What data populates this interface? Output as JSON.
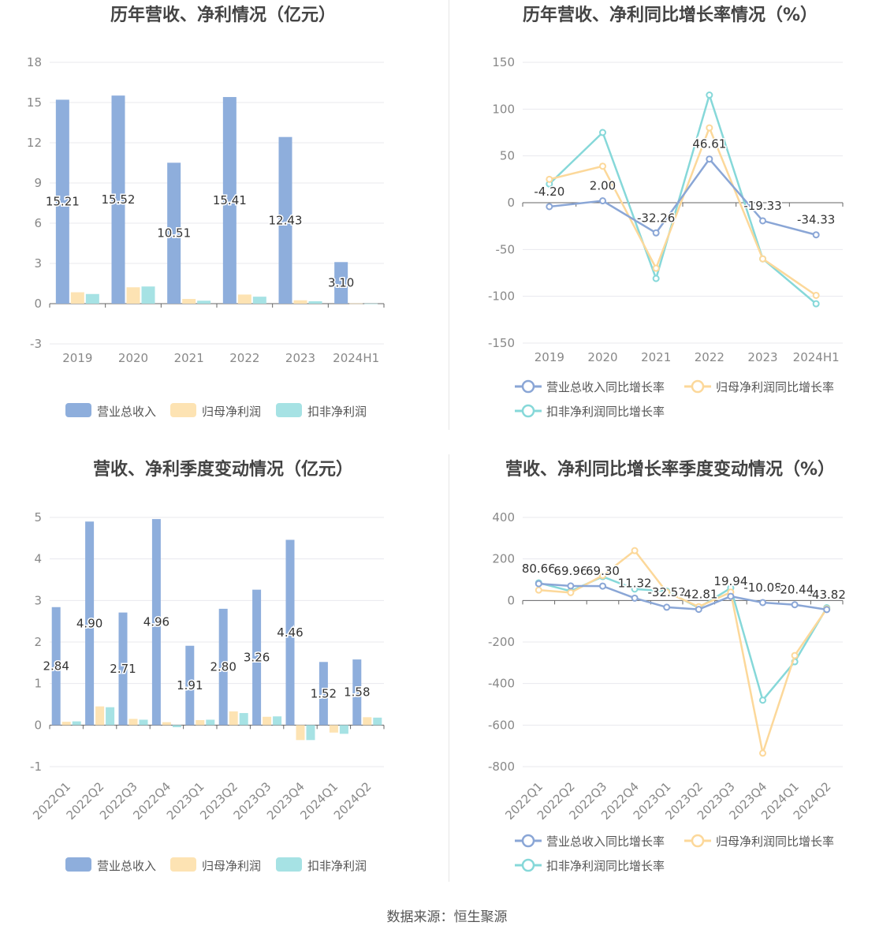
{
  "footer": "数据来源：恒生聚源",
  "colors": {
    "revenue": "#8eaedc",
    "net_profit": "#fde3b3",
    "deducted_profit": "#a6e2e4",
    "revenue_line": "#8aa6d6",
    "net_line": "#fcd89a",
    "deducted_line": "#86d8d9"
  },
  "chart_data": [
    {
      "id": "annual-amount",
      "type": "bar",
      "title": "历年营收、净利情况（亿元）",
      "categories": [
        "2019",
        "2020",
        "2021",
        "2022",
        "2023",
        "2024H1"
      ],
      "ylim": [
        -3,
        18
      ],
      "yticks": [
        -3,
        0,
        3,
        6,
        9,
        12,
        15,
        18
      ],
      "series": [
        {
          "name": "营业总收入",
          "values": [
            15.21,
            15.52,
            10.51,
            15.41,
            12.43,
            3.1
          ],
          "color": "#8eaedc"
        },
        {
          "name": "归母净利润",
          "values": [
            0.85,
            1.22,
            0.35,
            0.68,
            0.25,
            0.02
          ],
          "color": "#fde3b3"
        },
        {
          "name": "扣非净利润",
          "values": [
            0.72,
            1.28,
            0.22,
            0.52,
            0.18,
            0.01
          ],
          "color": "#a6e2e4"
        }
      ],
      "data_labels": [
        "15.21",
        "15.52",
        "10.51",
        "15.41",
        "12.43",
        "3.10"
      ],
      "legend": "bottom",
      "grid": true
    },
    {
      "id": "annual-growth",
      "type": "line",
      "title": "历年营收、净利同比增长率情况（%）",
      "categories": [
        "2019",
        "2020",
        "2021",
        "2022",
        "2023",
        "2024H1"
      ],
      "ylim": [
        -150,
        150
      ],
      "yticks": [
        -150,
        -100,
        -50,
        0,
        50,
        100,
        150
      ],
      "series": [
        {
          "name": "营业总收入同比增长率",
          "values": [
            -4.2,
            2.0,
            -32.26,
            46.61,
            -19.33,
            -34.33
          ],
          "color": "#8aa6d6"
        },
        {
          "name": "归母净利润同比增长率",
          "values": [
            25,
            39,
            -70,
            80,
            -60,
            -99
          ],
          "color": "#fcd89a"
        },
        {
          "name": "扣非净利润同比增长率",
          "values": [
            20,
            75,
            -81,
            115,
            -60,
            -108
          ],
          "color": "#86d8d9"
        }
      ],
      "data_labels": [
        "-4.20",
        "2.00",
        "-32.26",
        "46.61",
        "-19.33",
        "-34.33"
      ],
      "legend": "bottom",
      "grid": true
    },
    {
      "id": "quarterly-amount",
      "type": "bar",
      "title": "营收、净利季度变动情况（亿元）",
      "categories": [
        "2022Q1",
        "2022Q2",
        "2022Q3",
        "2022Q4",
        "2023Q1",
        "2023Q2",
        "2023Q3",
        "2023Q4",
        "2024Q1",
        "2024Q2"
      ],
      "ylim": [
        -1,
        5
      ],
      "yticks": [
        -1,
        0,
        1,
        2,
        3,
        4,
        5
      ],
      "series": [
        {
          "name": "营业总收入",
          "values": [
            2.84,
            4.9,
            2.71,
            4.96,
            1.91,
            2.8,
            3.26,
            4.46,
            1.52,
            1.58
          ],
          "color": "#8eaedc"
        },
        {
          "name": "归母净利润",
          "values": [
            0.08,
            0.45,
            0.15,
            0.07,
            0.12,
            0.33,
            0.2,
            -0.36,
            -0.18,
            0.19
          ],
          "color": "#fde3b3"
        },
        {
          "name": "扣非净利润",
          "values": [
            0.09,
            0.43,
            0.13,
            -0.05,
            0.13,
            0.29,
            0.21,
            -0.36,
            -0.21,
            0.18
          ],
          "color": "#a6e2e4"
        }
      ],
      "data_labels": [
        "2.84",
        "4.90",
        "2.71",
        "4.96",
        "1.91",
        "2.80",
        "3.26",
        "4.46",
        "1.52",
        "1.58"
      ],
      "legend": "bottom",
      "grid": true
    },
    {
      "id": "quarterly-growth",
      "type": "line",
      "title": "营收、净利同比增长率季度变动情况（%）",
      "categories": [
        "2022Q1",
        "2022Q2",
        "2022Q3",
        "2022Q4",
        "2023Q1",
        "2023Q2",
        "2023Q3",
        "2023Q4",
        "2024Q1",
        "2024Q2"
      ],
      "ylim": [
        -800,
        400
      ],
      "yticks": [
        -800,
        -600,
        -400,
        -200,
        0,
        200,
        400
      ],
      "series": [
        {
          "name": "营业总收入同比增长率",
          "values": [
            80.66,
            69.96,
            69.3,
            11.32,
            -32.52,
            -42.81,
            19.94,
            -10.08,
            -20.44,
            -43.82
          ],
          "color": "#8aa6d6"
        },
        {
          "name": "归母净利润同比增长率",
          "values": [
            50,
            38,
            120,
            240,
            40,
            -30,
            40,
            -735,
            -265,
            -40
          ],
          "color": "#fcd89a"
        },
        {
          "name": "扣非净利润同比增长率",
          "values": [
            85,
            45,
            115,
            55,
            45,
            -35,
            60,
            -480,
            -295,
            -35
          ],
          "color": "#86d8d9"
        }
      ],
      "data_labels": [
        "80.66",
        "69.96",
        "69.30",
        "11.32",
        "-32.52",
        "-42.81",
        "19.94",
        "-10.08",
        "-20.44",
        "-43.82"
      ],
      "legend": "bottom",
      "grid": true
    }
  ]
}
